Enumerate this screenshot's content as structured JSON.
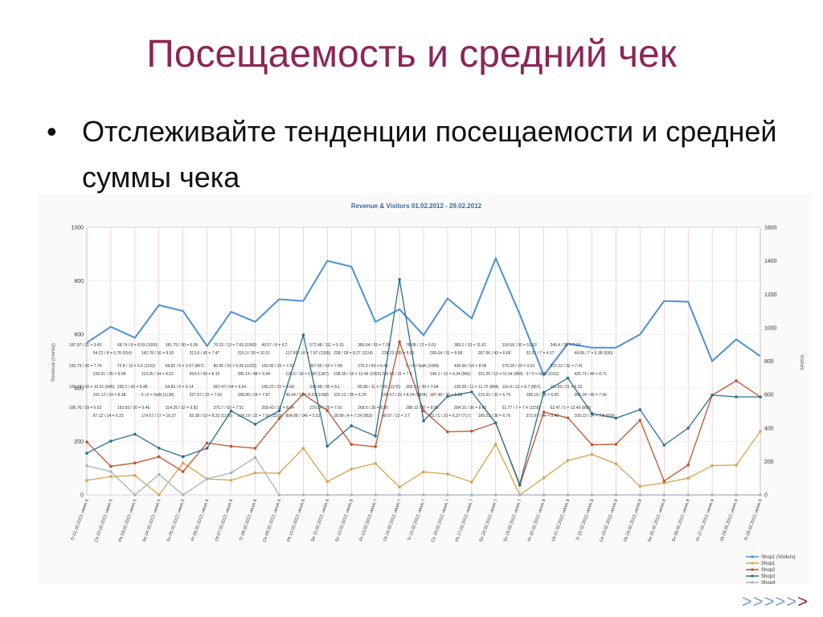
{
  "slide": {
    "title": "Посещаемость и средний чек",
    "bullet": "•",
    "bullet_text": "Отслеживайте тенденции посещаемости и средней суммы чека",
    "nav": ">>>>>",
    "nav_last": ">"
  },
  "chart_data": {
    "type": "line",
    "title": "Revenue & Visitors 01.02.2012 - 29.02.2012",
    "ylabel": "Revenue (money)",
    "y2label": "Visitors",
    "ylim": [
      0,
      1000
    ],
    "y2lim": [
      0,
      1600
    ],
    "yticks": [
      "0",
      "200",
      "400",
      "600",
      "800",
      "1000"
    ],
    "y2ticks": [
      "0",
      "200",
      "400",
      "600",
      "800",
      "1000",
      "1200",
      "1400",
      "1600"
    ],
    "categories": [
      "Tr 01.02.2012, week 5",
      "Ce 02.02.2012, week 5",
      "Pk 03.02.2012, week 5",
      "Se 04.02.2012, week 5",
      "Sv 05.02.2012, week 5",
      "Pr 06.02.2012, week 6",
      "Ot 07.02.2012, week 6",
      "Tr 08.02.2012, week 6",
      "Ce 09.02.2012, week 6",
      "Pk 10.02.2012, week 6",
      "Se 11.02.2012, week 6",
      "Sv 12.02.2012, week 6",
      "Pr 13.02.2012, week 7",
      "Ot 14.02.2012, week 7",
      "Tr 15.02.2012, week 7",
      "Ce 16.02.2012, week 7",
      "Pk 17.02.2012, week 7",
      "Se 18.02.2012, week 7",
      "Sv 19.02.2012, week 7",
      "Pr 20.02.2012, week 8",
      "Ot 21.02.2012, week 8",
      "Tr 22.02.2012, week 8",
      "Ce 23.02.2012, week 8",
      "Pk 24.02.2012, week 8",
      "Se 25.02.2012, week 8",
      "Sv 26.02.2012, week 8",
      "Pr 27.02.2012, week 9",
      "Ot 28.02.2012, week 9",
      "Tr 29.02.2012, week 9"
    ],
    "legend_position": "bottom-right",
    "series": [
      {
        "name": "Shop1 (Visitors)",
        "axis": "right",
        "color": "#4a90d9",
        "values": [
          910,
          1005,
          940,
          1135,
          1100,
          890,
          1095,
          1035,
          1170,
          1160,
          1400,
          1365,
          1035,
          1110,
          955,
          1175,
          1055,
          1415,
          1080,
          715,
          905,
          880,
          880,
          960,
          1160,
          1155,
          800,
          930,
          830
        ]
      },
      {
        "name": "Shop1",
        "axis": "left",
        "color": "#d8a24a",
        "values": [
          54.21,
          68.74,
          72.8,
          0,
          119.26,
          59.82,
          54.83,
          82.28,
          80.95,
          174.19,
          49.57,
          96.44,
          117.59,
          28.98,
          85.86,
          78.08,
          48.07,
          189.57,
          0,
          63.71,
          128.95,
          151.26,
          116.4,
          32.01,
          44.68,
          62.47,
          109.23,
          111.65,
          237.22
        ]
      },
      {
        "name": "Shop2",
        "axis": "left",
        "color": "#c0522a",
        "values": [
          197.97,
          106.76,
          119.26,
          142.78,
          87.12,
          193.93,
          181.79,
          174.57,
          285.14,
          376.7,
          315.3,
          188.85,
          180.22,
          572.48,
          314.35,
          235.65,
          238.23,
          269.04,
          35.5,
          309.71,
          288.12,
          187.48,
          189.23,
          279.28,
          51.77,
          111.65,
          372.97,
          426.71,
          366.24
        ]
      },
      {
        "name": "Shop3",
        "axis": "left",
        "color": "#2a6f93",
        "values": [
          155.73,
          201.12,
          226.91,
          174.78,
          142.78,
          174.57,
          313.6,
          264.3,
          314.25,
          597.47,
          182.06,
          258.43,
          220.12,
          804.88,
          276.5,
          367.95,
          385.04,
          268.5,
          40,
          383.1,
          436.66,
          304.15,
          287.06,
          318.58,
          186.16,
          249.4,
          372.97,
          366.24,
          366.24
        ]
      },
      {
        "name": "Shop4",
        "axis": "left",
        "color": "#a8b2c0",
        "values": [
          109.12,
          87.12,
          0,
          76.53,
          0,
          59.82,
          82.28,
          140.1,
          0,
          0,
          0,
          0,
          0,
          0,
          0,
          0,
          0,
          0,
          0,
          0,
          0,
          0,
          0,
          0,
          0,
          0,
          0,
          0,
          0
        ]
      }
    ],
    "annotations": [
      "197.97 / 21 = 9.43",
      "155.73 / 20 = 7.79",
      "109.12 / 10 = 10.91 (945)",
      "106.76 / 19 = 5.62",
      "54.21 / 8 = 6.78 (914)",
      "226.91 / 25 = 9.08",
      "201.12 / 24 = 8.38",
      "87.12 / 14 = 6.22",
      "68.74 / 8 = 8.59 (1005)",
      "72.8 / 13 = 5.6 (1102)",
      "230.2 / 42 = 5.48",
      "193.93 / 30 = 6.46",
      "142.78 / 16 = 8.92",
      "119.26 / 14 = 8.52",
      "0 / 0 = NaN (1138)",
      "174.57 / 17 = 10.27",
      "181.79 / 30 = 6.06",
      "59.82 / 6 = 9.97 (897)",
      "54.83 / 6 = 9.14",
      "314.25 / 32 = 9.82",
      "313.6 / 42 = 7.47",
      "264.3 / 43 = 6.15",
      "227.67 / 22 = 7.62",
      "82.28 / 10 = 8.23 (1170)",
      "76.53 / 10 = 7.65 (1060)",
      "80.95 / 16 = 5.06 (1032)",
      "597.47 / 64 = 9.34",
      "376.7 / 50 = 7.51",
      "315.3 / 30 = 10.51",
      "285.14 / 48 = 5.94",
      "188.85 / 24 = 7.87",
      "174.19 / 22 = 7.92 (1153)",
      "49.57 / 8 = 6.2",
      "182.06 / 23 = 7.92",
      "180.22 / 21 = 8.58",
      "258.43 / 31 = 8.34",
      "117.59 / 16 = 7.97 (1399)",
      "125.6 / 18 = 6.98 (1367)",
      "96.44 / 12 = 8.03 (1038)",
      "804.88 / 146 = 5.51",
      "572.48 / 111 = 5.16",
      "367.95 / 52 = 7.08",
      "318.48 / 35 = 9.1",
      "229.34 / 29 = 7.91",
      "228 / 28 = 8.27 (1114)",
      "198.35 / 16 = 12.46 (1055)",
      "220.12 / 35 = 6.29",
      "28.98 / 4 = 7.24 (953)",
      "385.04 / 53 = 7.26",
      "276.5 / 43 = 6.41",
      "85.86 / 11 = 7.81 (1176)",
      "268.5 / 30 = 8.95",
      "238.23 / 35 = 6.81",
      "235.65 / 31 = 7.6",
      "189.57 / 23 = 8.24 (1424)",
      "48.07 / 13 = 3.7",
      "78.08 / 13 = 6.01",
      "0 / 0 = NaN (1084)",
      "309.71 / 39 = 7.94",
      "288.12 / 37 = 8.06",
      "269.04 / 31 = 8.68",
      "140.1 / 15 = 9.34 (906)",
      "187.48 / 32 = 5.86",
      "63.71 / 10 = 6.37 (717)",
      "383.1 / 33 = 11.61",
      "436.66 / 54 = 8.09",
      "128.95 / 11 = 11.72 (884)",
      "304.15 / 36 = 8.45",
      "287.06 / 43 = 6.68",
      "151.26 / 13 = 11.64 (884)",
      "215.91 / 32 = 6.75",
      "189.23 / 28 = 6.76",
      "318.58 / 30 = 10.62",
      "279.28 / 29 = 9.63",
      "116.4 / 12 = 9.7 (967)",
      "51.77 / 7 = 7.4 (1158)",
      "32.01 / 7 = 4.57",
      "0 / 0 = NaN (1152)",
      "186.16 / 28 = 6.65",
      "372.97 / 44 = 8.48",
      "249.4 / 35 = 7.13",
      "237.22 / 32 = 7.41",
      "111.65 / 21 = 5.32",
      "62.47 / 5 = 12.49 (805)",
      "44.68 / 7 = 6.38 (930)",
      "426.71 / 49 = 8.71",
      "366.24 / 46 = 7.96",
      "109.23 / 14 = 7.8 (830)"
    ]
  }
}
